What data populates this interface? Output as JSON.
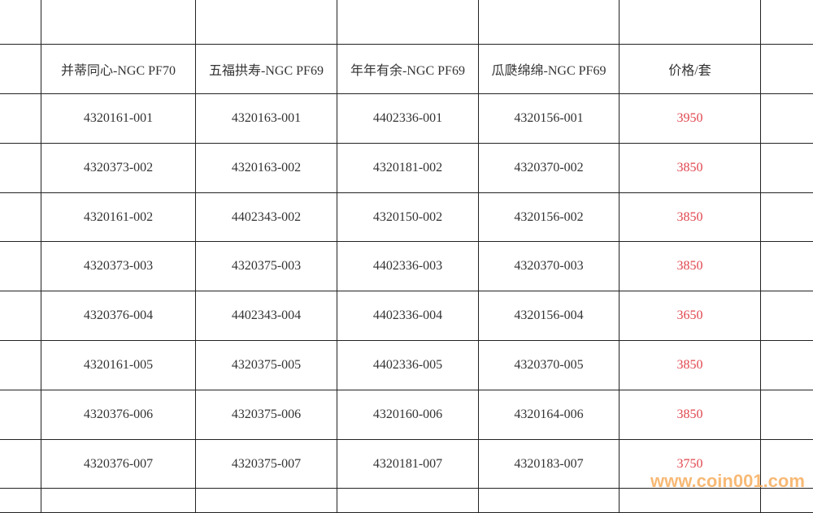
{
  "table": {
    "headers": [
      "并蒂同心-NGC PF70",
      "五福拱寿-NGC PF69",
      "年年有余-NGC PF69",
      "瓜瓞绵绵-NGC PF69",
      "价格/套"
    ],
    "rows": [
      [
        "4320161-001",
        "4320163-001",
        "4402336-001",
        "4320156-001",
        "3950"
      ],
      [
        "4320373-002",
        "4320163-002",
        "4320181-002",
        "4320370-002",
        "3850"
      ],
      [
        "4320161-002",
        "4402343-002",
        "4320150-002",
        "4320156-002",
        "3850"
      ],
      [
        "4320373-003",
        "4320375-003",
        "4402336-003",
        "4320370-003",
        "3850"
      ],
      [
        "4320376-004",
        "4402343-004",
        "4402336-004",
        "4320156-004",
        "3650"
      ],
      [
        "4320161-005",
        "4320375-005",
        "4402336-005",
        "4320370-005",
        "3850"
      ],
      [
        "4320376-006",
        "4320375-006",
        "4320160-006",
        "4320164-006",
        "3850"
      ],
      [
        "4320376-007",
        "4320375-007",
        "4320181-007",
        "4320183-007",
        "3750"
      ]
    ],
    "price_color": "#e0464e"
  },
  "watermark": "www.coin001.com"
}
